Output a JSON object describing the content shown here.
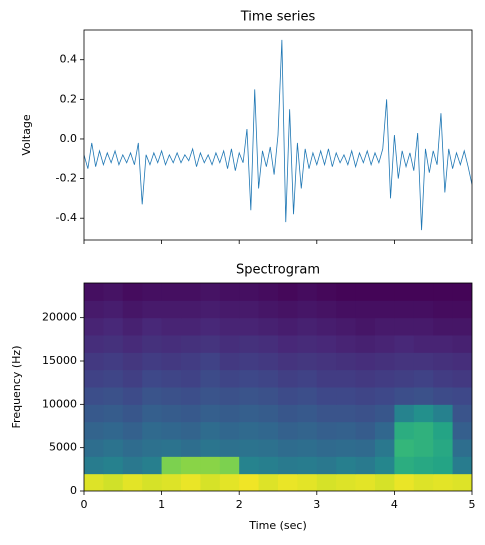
{
  "chart_data": [
    {
      "type": "line",
      "title": "Time series",
      "y_label": "Voltage",
      "color": "#1f77b4",
      "show_xtick_labels": false,
      "xlim": [
        0,
        5
      ],
      "xticks": [
        0,
        1,
        2,
        3,
        4,
        5
      ],
      "ylim": [
        -0.51,
        0.55
      ],
      "yticks": [
        -0.4,
        -0.2,
        {
          "value": 0,
          "label": "0.0"
        },
        0.2,
        0.4
      ],
      "x": [
        0,
        0.05,
        0.1,
        0.15,
        0.2,
        0.25,
        0.3,
        0.35,
        0.4,
        0.45,
        0.5,
        0.55,
        0.6,
        0.65,
        0.7,
        0.75,
        0.8,
        0.85,
        0.9,
        0.95,
        1,
        1.05,
        1.1,
        1.15,
        1.2,
        1.25,
        1.3,
        1.35,
        1.4,
        1.45,
        1.5,
        1.55,
        1.6,
        1.65,
        1.7,
        1.75,
        1.8,
        1.85,
        1.9,
        1.95,
        2,
        2.05,
        2.1,
        2.15,
        2.2,
        2.25,
        2.3,
        2.35,
        2.4,
        2.45,
        2.5,
        2.55,
        2.6,
        2.65,
        2.7,
        2.75,
        2.8,
        2.85,
        2.9,
        2.95,
        3,
        3.05,
        3.1,
        3.15,
        3.2,
        3.25,
        3.3,
        3.35,
        3.4,
        3.45,
        3.5,
        3.55,
        3.6,
        3.65,
        3.7,
        3.75,
        3.8,
        3.85,
        3.9,
        3.95,
        4,
        4.05,
        4.1,
        4.15,
        4.2,
        4.25,
        4.3,
        4.35,
        4.4,
        4.45,
        4.5,
        4.55,
        4.6,
        4.65,
        4.7,
        4.75,
        4.8,
        4.85,
        4.9,
        4.95,
        5
      ],
      "values": [
        -0.08,
        -0.15,
        -0.02,
        -0.14,
        -0.06,
        -0.13,
        -0.07,
        -0.12,
        -0.06,
        -0.13,
        -0.08,
        -0.12,
        -0.07,
        -0.13,
        -0.02,
        -0.33,
        -0.08,
        -0.13,
        -0.07,
        -0.12,
        -0.06,
        -0.13,
        -0.08,
        -0.12,
        -0.07,
        -0.12,
        -0.08,
        -0.11,
        -0.05,
        -0.14,
        -0.07,
        -0.12,
        -0.08,
        -0.13,
        -0.07,
        -0.12,
        -0.06,
        -0.15,
        -0.05,
        -0.16,
        -0.07,
        -0.12,
        0.05,
        -0.36,
        0.25,
        -0.25,
        -0.06,
        -0.14,
        -0.04,
        -0.18,
        0.02,
        0.5,
        -0.42,
        0.15,
        -0.38,
        -0.02,
        -0.25,
        -0.05,
        -0.15,
        -0.07,
        -0.13,
        -0.06,
        -0.13,
        -0.05,
        -0.14,
        -0.07,
        -0.12,
        -0.08,
        -0.13,
        -0.06,
        -0.14,
        -0.07,
        -0.12,
        -0.06,
        -0.13,
        -0.07,
        -0.12,
        -0.05,
        0.2,
        -0.3,
        0.02,
        -0.2,
        -0.06,
        -0.14,
        -0.07,
        -0.16,
        0.03,
        -0.46,
        -0.05,
        -0.17,
        -0.06,
        -0.13,
        0.13,
        -0.27,
        -0.05,
        -0.15,
        -0.07,
        -0.13,
        -0.06,
        -0.14,
        -0.23
      ]
    },
    {
      "type": "heatmap",
      "title": "Spectrogram",
      "x_label": "Time (sec)",
      "y_label": "Frequency (Hz)",
      "colormap": "viridis",
      "xlim": [
        0,
        5
      ],
      "xticks": [
        0,
        1,
        2,
        3,
        4,
        5
      ],
      "ylim": [
        0,
        24000
      ],
      "yticks": [
        0,
        5000,
        10000,
        15000,
        20000
      ],
      "x_edges": [
        0,
        0.25,
        0.5,
        0.75,
        1,
        1.25,
        1.5,
        1.75,
        2,
        2.25,
        2.5,
        2.75,
        3,
        3.25,
        3.5,
        3.75,
        4,
        4.25,
        4.5,
        4.75,
        5
      ],
      "y_edges": [
        0,
        2000,
        4000,
        6000,
        8000,
        10000,
        12000,
        14000,
        16000,
        18000,
        20000,
        22000,
        24000
      ],
      "z": [
        [
          0.95,
          0.93,
          0.96,
          0.94,
          0.95,
          0.97,
          0.94,
          0.96,
          0.98,
          0.95,
          0.97,
          0.96,
          0.94,
          0.95,
          0.96,
          0.94,
          0.97,
          0.95,
          0.96,
          0.95
        ],
        [
          0.42,
          0.44,
          0.4,
          0.43,
          0.8,
          0.82,
          0.82,
          0.8,
          0.45,
          0.43,
          0.41,
          0.42,
          0.4,
          0.43,
          0.41,
          0.46,
          0.62,
          0.6,
          0.58,
          0.42
        ],
        [
          0.36,
          0.38,
          0.35,
          0.37,
          0.38,
          0.36,
          0.39,
          0.37,
          0.38,
          0.37,
          0.35,
          0.36,
          0.34,
          0.35,
          0.34,
          0.4,
          0.66,
          0.64,
          0.6,
          0.36
        ],
        [
          0.32,
          0.33,
          0.31,
          0.34,
          0.33,
          0.32,
          0.35,
          0.33,
          0.34,
          0.33,
          0.31,
          0.32,
          0.3,
          0.31,
          0.29,
          0.33,
          0.62,
          0.64,
          0.58,
          0.3
        ],
        [
          0.28,
          0.29,
          0.27,
          0.3,
          0.29,
          0.28,
          0.3,
          0.29,
          0.3,
          0.29,
          0.27,
          0.28,
          0.26,
          0.26,
          0.25,
          0.27,
          0.45,
          0.5,
          0.44,
          0.26
        ],
        [
          0.24,
          0.25,
          0.23,
          0.26,
          0.25,
          0.24,
          0.26,
          0.25,
          0.26,
          0.25,
          0.23,
          0.24,
          0.22,
          0.22,
          0.21,
          0.22,
          0.24,
          0.25,
          0.23,
          0.22
        ],
        [
          0.2,
          0.21,
          0.19,
          0.22,
          0.21,
          0.2,
          0.23,
          0.21,
          0.22,
          0.21,
          0.19,
          0.2,
          0.18,
          0.18,
          0.17,
          0.18,
          0.19,
          0.2,
          0.18,
          0.17
        ],
        [
          0.17,
          0.18,
          0.16,
          0.18,
          0.17,
          0.18,
          0.2,
          0.17,
          0.18,
          0.17,
          0.15,
          0.16,
          0.15,
          0.14,
          0.13,
          0.14,
          0.15,
          0.15,
          0.14,
          0.13
        ],
        [
          0.13,
          0.14,
          0.12,
          0.14,
          0.13,
          0.14,
          0.15,
          0.13,
          0.14,
          0.13,
          0.11,
          0.12,
          0.11,
          0.1,
          0.09,
          0.1,
          0.11,
          0.1,
          0.1,
          0.09
        ],
        [
          0.1,
          0.11,
          0.09,
          0.11,
          0.1,
          0.1,
          0.11,
          0.1,
          0.1,
          0.09,
          0.08,
          0.09,
          0.08,
          0.07,
          0.06,
          0.07,
          0.07,
          0.07,
          0.06,
          0.06
        ],
        [
          0.07,
          0.08,
          0.06,
          0.07,
          0.07,
          0.07,
          0.08,
          0.07,
          0.07,
          0.06,
          0.05,
          0.06,
          0.05,
          0.04,
          0.04,
          0.04,
          0.04,
          0.04,
          0.03,
          0.03
        ],
        [
          0.04,
          0.05,
          0.03,
          0.04,
          0.04,
          0.04,
          0.05,
          0.04,
          0.04,
          0.03,
          0.02,
          0.03,
          0.02,
          0.01,
          0.01,
          0.01,
          0.01,
          0.01,
          0.01,
          0.01
        ]
      ]
    }
  ]
}
